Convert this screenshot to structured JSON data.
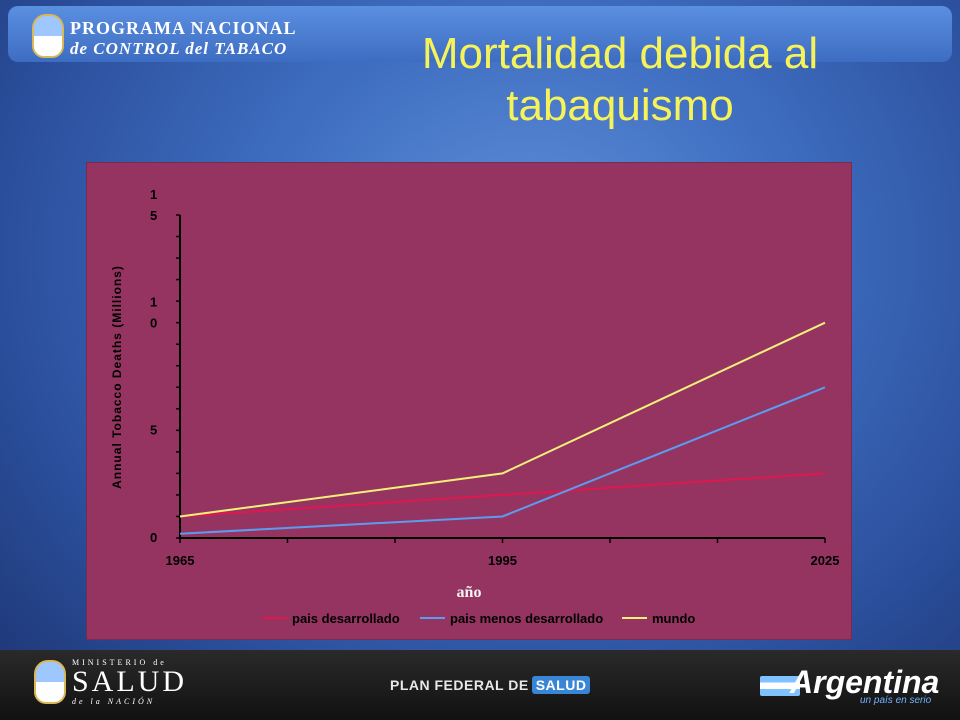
{
  "header": {
    "logo_line1": "PROGRAMA NACIONAL",
    "logo_line2": "de CONTROL del TABACO"
  },
  "title": "Mortalidad debida al tabaquismo",
  "footer": {
    "ministerio": "MINISTERIO de",
    "salud": "SALUD",
    "nacion": "de la NACIÓN",
    "plan": "PLAN FEDERAL DE",
    "plan_badge": "SALUD",
    "argentina": "Argentina",
    "argentina_sub": "un país en serio"
  },
  "colors": {
    "title": "#f6f25a",
    "chart_bg": "#953461",
    "developed": "#e0164e",
    "less_developed": "#5b9cf0",
    "world": "#f4f07a"
  },
  "chart_data": {
    "type": "line",
    "x": [
      1965,
      1995,
      2025
    ],
    "xticklabels": [
      "1965",
      "1995",
      "2025"
    ],
    "xlabel": "año",
    "ylabel": "Annual Tobacco Deaths (Millions)",
    "ylim": [
      0,
      15
    ],
    "yticks": [
      0,
      5,
      10,
      15
    ],
    "ytick_labels": [
      [
        "0"
      ],
      [
        "5"
      ],
      [
        "1",
        "0"
      ],
      [
        "1",
        "5"
      ]
    ],
    "series": [
      {
        "name": "pais desarrollado",
        "color": "#e0164e",
        "values": [
          1,
          2,
          3
        ]
      },
      {
        "name": "pais menos desarrollado",
        "color": "#5b9cf0",
        "values": [
          0.2,
          1,
          7
        ]
      },
      {
        "name": "mundo",
        "color": "#f4f07a",
        "values": [
          1,
          3,
          10
        ]
      }
    ],
    "legend_position": "bottom"
  }
}
